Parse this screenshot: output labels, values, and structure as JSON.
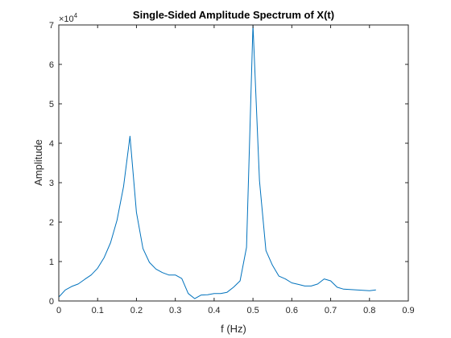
{
  "chart_data": {
    "type": "line",
    "title": "Single-Sided Amplitude Spectrum of X(t)",
    "xlabel": "f (Hz)",
    "ylabel": "Amplitude",
    "xlim": [
      0,
      0.9
    ],
    "ylim": [
      0,
      70000
    ],
    "xticks": [
      0,
      0.1,
      0.2,
      0.3,
      0.4,
      0.5,
      0.6,
      0.7,
      0.8,
      0.9
    ],
    "xtick_labels": [
      "0",
      "0.1",
      "0.2",
      "0.3",
      "0.4",
      "0.5",
      "0.6",
      "0.7",
      "0.8",
      "0.9"
    ],
    "yticks": [
      0,
      10000,
      20000,
      30000,
      40000,
      50000,
      60000,
      70000
    ],
    "ytick_labels": [
      "0",
      "1",
      "2",
      "3",
      "4",
      "5",
      "6",
      "7"
    ],
    "y_exponent": {
      "base": "×10",
      "power": "4"
    },
    "grid": false,
    "series": [
      {
        "color": "#0072bd",
        "x": [
          0,
          0.0167,
          0.0333,
          0.05,
          0.0667,
          0.0833,
          0.1,
          0.1167,
          0.1333,
          0.15,
          0.1667,
          0.1833,
          0.2,
          0.2167,
          0.2333,
          0.25,
          0.2667,
          0.2833,
          0.3,
          0.3167,
          0.3333,
          0.35,
          0.3667,
          0.3833,
          0.4,
          0.4167,
          0.4333,
          0.45,
          0.4667,
          0.4833,
          0.5,
          0.5167,
          0.5333,
          0.55,
          0.5667,
          0.5833,
          0.6,
          0.6167,
          0.6333,
          0.65,
          0.6667,
          0.6833,
          0.7,
          0.7167,
          0.7333,
          0.75,
          0.7667,
          0.7833,
          0.8,
          0.8167
        ],
        "y": [
          1000,
          2800,
          3700,
          4300,
          5500,
          6600,
          8300,
          11000,
          14800,
          20500,
          29000,
          41800,
          22500,
          13300,
          9800,
          8100,
          7200,
          6600,
          6600,
          5700,
          1900,
          600,
          1500,
          1600,
          1900,
          1900,
          2200,
          3500,
          5100,
          13600,
          70000,
          30500,
          12800,
          9100,
          6300,
          5600,
          4600,
          4200,
          3800,
          3800,
          4300,
          5600,
          5100,
          3500,
          3000,
          2900,
          2800,
          2700,
          2600,
          2800
        ]
      }
    ]
  }
}
